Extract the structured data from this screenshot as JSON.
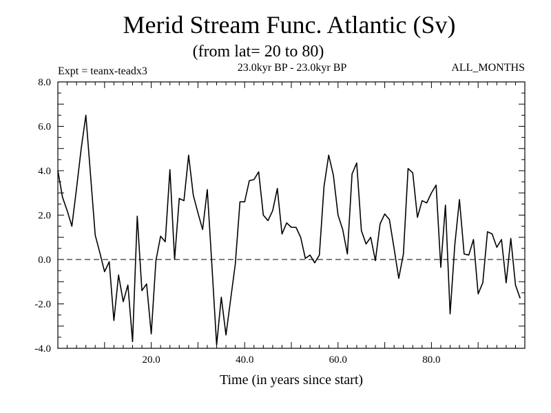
{
  "chart_data": {
    "type": "line",
    "title": "Merid Stream Func. Atlantic (Sv)",
    "subtitle": "(from lat= 20 to 80)",
    "experiment_label": "Expt = teanx-teadx3",
    "period_label": "23.0kyr BP - 23.0kyr BP",
    "months_label": "ALL_MONTHS",
    "xlabel": "Time (in years since start)",
    "ylabel": "",
    "xlim": [
      0,
      100
    ],
    "ylim": [
      -4,
      8
    ],
    "xticks_labeled": [
      20,
      40,
      60,
      80
    ],
    "xtick_labels": [
      "20.0",
      "40.0",
      "60.0",
      "80.0"
    ],
    "yticks_labeled": [
      -4,
      -2,
      0,
      2,
      4,
      6,
      8
    ],
    "ytick_labels": [
      "-4.0",
      "-2.0",
      "0.0",
      "2.0",
      "4.0",
      "6.0",
      "8.0"
    ],
    "reference_line": {
      "y": 0,
      "style": "dashed"
    },
    "series": [
      {
        "name": "Merid Stream Func. Atlantic",
        "x": [
          0,
          1,
          2,
          3,
          4,
          5,
          6,
          7,
          8,
          9,
          10,
          11,
          12,
          13,
          14,
          15,
          16,
          17,
          18,
          19,
          20,
          21,
          22,
          23,
          24,
          25,
          26,
          27,
          28,
          29,
          30,
          31,
          32,
          33,
          34,
          35,
          36,
          37,
          38,
          39,
          40,
          41,
          42,
          43,
          44,
          45,
          46,
          47,
          48,
          49,
          50,
          51,
          52,
          53,
          54,
          55,
          56,
          57,
          58,
          59,
          60,
          61,
          62,
          63,
          64,
          65,
          66,
          67,
          68,
          69,
          70,
          71,
          72,
          73,
          74,
          75,
          76,
          77,
          78,
          79,
          80,
          81,
          82,
          83,
          84,
          85,
          86,
          87,
          88,
          89,
          90,
          91,
          92,
          93,
          94,
          95,
          96,
          97,
          98,
          99
        ],
        "y": [
          4.0,
          2.8,
          2.2,
          1.5,
          3.2,
          5.0,
          6.5,
          3.8,
          1.1,
          0.3,
          -0.55,
          -0.1,
          -2.75,
          -0.7,
          -1.9,
          -1.15,
          -3.7,
          1.95,
          -1.4,
          -1.1,
          -3.35,
          -0.05,
          1.05,
          0.8,
          4.05,
          0.0,
          2.75,
          2.65,
          4.7,
          2.9,
          2.1,
          1.35,
          3.15,
          -0.3,
          -3.85,
          -1.7,
          -3.4,
          -1.8,
          -0.2,
          2.6,
          2.6,
          3.55,
          3.6,
          3.95,
          2.0,
          1.75,
          2.2,
          3.2,
          1.15,
          1.65,
          1.45,
          1.45,
          1.0,
          0.05,
          0.2,
          -0.15,
          0.2,
          3.3,
          4.7,
          3.8,
          2.0,
          1.35,
          0.25,
          3.85,
          4.35,
          1.3,
          0.7,
          1.0,
          -0.05,
          1.6,
          2.05,
          1.8,
          0.5,
          -0.85,
          0.25,
          4.1,
          3.9,
          1.9,
          2.65,
          2.55,
          3.0,
          3.35,
          -0.35,
          2.45,
          -2.45,
          0.65,
          2.7,
          0.25,
          0.2,
          0.9,
          -1.55,
          -1.05,
          1.25,
          1.15,
          0.55,
          0.9,
          -1.05,
          0.95,
          -1.15,
          -1.75
        ]
      }
    ]
  }
}
